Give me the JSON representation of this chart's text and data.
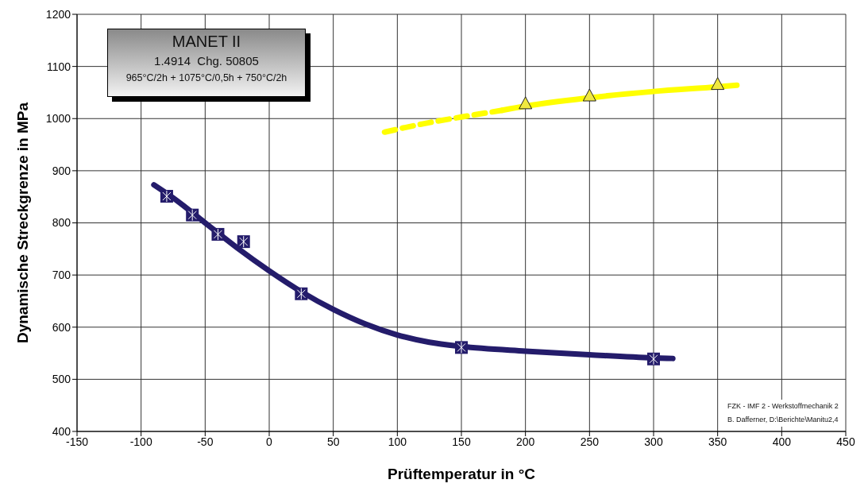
{
  "chart_data": {
    "type": "scatter",
    "xlabel": "Prüftemperatur in °C",
    "ylabel": "Dynamische Streckgrenze in MPa",
    "xlim": [
      -150,
      450
    ],
    "xticks": [
      -150,
      -100,
      -50,
      0,
      50,
      100,
      150,
      200,
      250,
      300,
      350,
      400,
      450
    ],
    "ylim": [
      400,
      1200
    ],
    "yticks": [
      400,
      500,
      600,
      700,
      800,
      900,
      1000,
      1100,
      1200
    ],
    "grid": true,
    "annotations": [
      "MANET II",
      "1.4914  Chg. 50805",
      "965°C/2h + 1075°C/0,5h + 750°C/2h",
      "FZK - IMF 2 - Werkstoffmechanik 2",
      "B. Dafferner, D:\\Berichte\\Manitu2,4"
    ],
    "series": [
      {
        "type": "line",
        "color": "#241c6b",
        "marker": "none",
        "line_style": "solid",
        "x": [
          -90,
          -75,
          -50,
          -25,
          0,
          25,
          50,
          75,
          100,
          125,
          150,
          200,
          250,
          300,
          315
        ],
        "values": [
          873,
          848,
          800,
          752,
          708,
          668,
          634,
          606,
          585,
          571,
          563,
          554,
          547,
          541,
          540
        ]
      },
      {
        "type": "line",
        "color": "#ffff00",
        "marker": "none",
        "line_style": "dashed",
        "x": [
          90,
          120,
          150,
          182
        ],
        "values": [
          974,
          990,
          1003,
          1016
        ]
      },
      {
        "type": "line",
        "color": "#ffff00",
        "marker": "none",
        "line_style": "solid",
        "x": [
          182,
          200,
          250,
          300,
          350,
          365
        ],
        "values": [
          1016,
          1024,
          1040,
          1052,
          1061,
          1064
        ]
      },
      {
        "color": "#241c6b",
        "marker": "square",
        "x": [
          -80,
          -60,
          -40,
          -20,
          25,
          150,
          300
        ],
        "values": [
          851,
          815,
          778,
          764,
          664,
          561,
          539
        ]
      },
      {
        "color": "#f0e840",
        "marker": "triangle",
        "x": [
          200,
          250,
          350
        ],
        "values": [
          1028,
          1043,
          1065
        ]
      }
    ]
  }
}
